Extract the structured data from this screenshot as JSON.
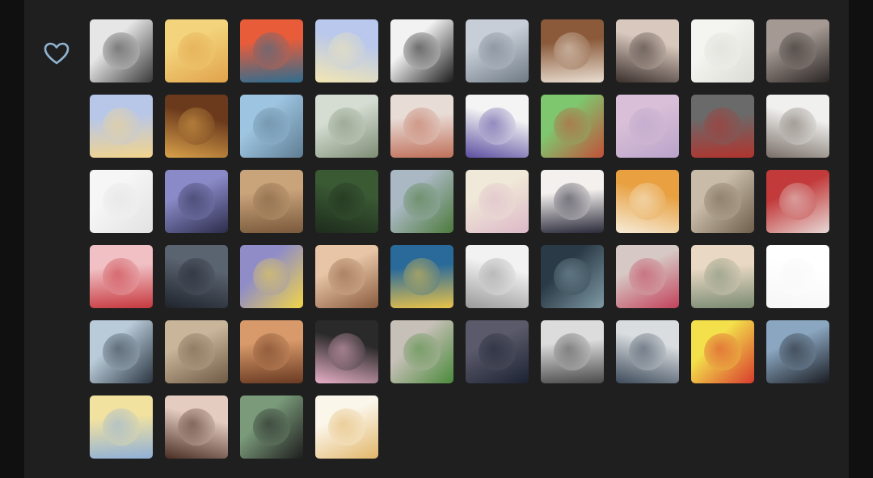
{
  "like_icon": "heart-outline-icon",
  "colors": {
    "page_bg": "#101010",
    "panel_bg": "#1f1f1f",
    "icon": "#8fb3cf"
  },
  "avatars": [
    {
      "name": "bw-portrait-mask",
      "colors": [
        "#e6e6e6",
        "#3a3a3a"
      ],
      "glyph": ""
    },
    {
      "name": "bugs-bunny-cartoon",
      "colors": [
        "#f3d37b",
        "#e0a24a"
      ],
      "glyph": ""
    },
    {
      "name": "patrick-star-cartoon",
      "colors": [
        "#e85c3a",
        "#2f6d8f"
      ],
      "glyph": ""
    },
    {
      "name": "comic-hand-phone",
      "colors": [
        "#b9c8ec",
        "#f2e6b2"
      ],
      "glyph": ""
    },
    {
      "name": "silhouette-flag",
      "colors": [
        "#f2f2f2",
        "#1b1b1b"
      ],
      "glyph": ""
    },
    {
      "name": "bridge-landscape",
      "colors": [
        "#c7ced8",
        "#6f7a84"
      ],
      "glyph": ""
    },
    {
      "name": "two-cats",
      "colors": [
        "#8a5a3a",
        "#e9ddd0"
      ],
      "glyph": ""
    },
    {
      "name": "two-girls-selfie",
      "colors": [
        "#d9c8bd",
        "#3a2f2c"
      ],
      "glyph": ""
    },
    {
      "name": "sketch-dog",
      "colors": [
        "#f4f4f0",
        "#dcdcd6"
      ],
      "glyph": ""
    },
    {
      "name": "girl-uniform",
      "colors": [
        "#a59a93",
        "#2a2524"
      ],
      "glyph": ""
    },
    {
      "name": "blonde-anime-girl",
      "colors": [
        "#b8c7e8",
        "#f2d48c"
      ],
      "glyph": ""
    },
    {
      "name": "restaurant-interior",
      "colors": [
        "#6b3a1c",
        "#d9a14a"
      ],
      "glyph": ""
    },
    {
      "name": "man-cap-portrait",
      "colors": [
        "#9dc4e0",
        "#5f7e94"
      ],
      "glyph": ""
    },
    {
      "name": "bride-photo",
      "colors": [
        "#d5ddd2",
        "#7e8d75"
      ],
      "glyph": ""
    },
    {
      "name": "flamingo-toys",
      "colors": [
        "#e8dcd6",
        "#c0705a"
      ],
      "glyph": ""
    },
    {
      "name": "cartoon-boy-cake",
      "colors": [
        "#f4f4f4",
        "#5c4ea0"
      ],
      "glyph": ""
    },
    {
      "name": "anime-boy-green",
      "colors": [
        "#7ec76e",
        "#c2503a"
      ],
      "glyph": ""
    },
    {
      "name": "anime-girl-pink",
      "colors": [
        "#d9c0d8",
        "#b9a3c9"
      ],
      "glyph": ""
    },
    {
      "name": "ultraman-figure",
      "colors": [
        "#6a6a6a",
        "#b1342e"
      ],
      "glyph": ""
    },
    {
      "name": "white-bird",
      "colors": [
        "#f0f0ee",
        "#7a6f68"
      ],
      "glyph": ""
    },
    {
      "name": "cartoon-cat-hoop",
      "colors": [
        "#f6f6f6",
        "#e2e2e2"
      ],
      "glyph": ""
    },
    {
      "name": "city-night-silhouette",
      "colors": [
        "#8a8ac8",
        "#2c2c4c"
      ],
      "glyph": ""
    },
    {
      "name": "baby-photo",
      "colors": [
        "#c9a37a",
        "#7a5a3c"
      ],
      "glyph": ""
    },
    {
      "name": "forest-trees",
      "colors": [
        "#3a5a34",
        "#1e2c1c"
      ],
      "glyph": ""
    },
    {
      "name": "grass-field",
      "colors": [
        "#a9b8c2",
        "#4d7a3c"
      ],
      "glyph": ""
    },
    {
      "name": "pink-pastel-drawing",
      "colors": [
        "#f0e8d8",
        "#dcb8c8"
      ],
      "glyph": ""
    },
    {
      "name": "anime-girl-glasses",
      "colors": [
        "#f4f0ee",
        "#2a2a3a"
      ],
      "glyph": ""
    },
    {
      "name": "snoopy-orange",
      "colors": [
        "#e8a040",
        "#f6ecd8"
      ],
      "glyph": ""
    },
    {
      "name": "girl-white-dress",
      "colors": [
        "#c8bca8",
        "#6f5e4c"
      ],
      "glyph": ""
    },
    {
      "name": "crowd-red-photo",
      "colors": [
        "#c23a3a",
        "#e7d9d6"
      ],
      "glyph": ""
    },
    {
      "name": "anime-girl-red",
      "colors": [
        "#f0c0c4",
        "#c6383e"
      ],
      "glyph": ""
    },
    {
      "name": "full-moon-city",
      "colors": [
        "#5a6370",
        "#1f242c"
      ],
      "glyph": ""
    },
    {
      "name": "yellow-raincoat-kid",
      "colors": [
        "#8f8cc8",
        "#f1d448"
      ],
      "glyph": ""
    },
    {
      "name": "two-kids-closeup",
      "colors": [
        "#e7c5a6",
        "#8a5a3e"
      ],
      "glyph": ""
    },
    {
      "name": "girl-flowers-yellow",
      "colors": [
        "#2a6a9a",
        "#e8c24a"
      ],
      "glyph": ""
    },
    {
      "name": "cartoon-cat-text",
      "colors": [
        "#f2f2f2",
        "#9a9a9a"
      ],
      "glyph": ""
    },
    {
      "name": "anime-boy-dark",
      "colors": [
        "#2a3a46",
        "#7f9aa6"
      ],
      "glyph": ""
    },
    {
      "name": "flower-girl-umbrella",
      "colors": [
        "#d6c8c4",
        "#c2415a"
      ],
      "glyph": ""
    },
    {
      "name": "boy-sketch-peach",
      "colors": [
        "#e9d9c4",
        "#7a8a72"
      ],
      "glyph": ""
    },
    {
      "name": "patrick-small-white",
      "colors": [
        "#ffffff",
        "#f6f6f6"
      ],
      "glyph": ""
    },
    {
      "name": "boy-hoodie",
      "colors": [
        "#b9cad8",
        "#2a3642"
      ],
      "glyph": ""
    },
    {
      "name": "cat-mask",
      "colors": [
        "#c8b59a",
        "#6f5a44"
      ],
      "glyph": ""
    },
    {
      "name": "cat-sunlight",
      "colors": [
        "#d89a6a",
        "#6a3a22"
      ],
      "glyph": ""
    },
    {
      "name": "kuromi-plush",
      "colors": [
        "#2a2a2a",
        "#e8b0c6"
      ],
      "glyph": ""
    },
    {
      "name": "frog-plush",
      "colors": [
        "#c7c0b8",
        "#4a8a3a"
      ],
      "glyph": ""
    },
    {
      "name": "night-sky-city",
      "colors": [
        "#5a5a6a",
        "#1c2232"
      ],
      "glyph": ""
    },
    {
      "name": "man-sea-bw",
      "colors": [
        "#dcdcdc",
        "#4a4a4a"
      ],
      "glyph": ""
    },
    {
      "name": "person-sitting-sky",
      "colors": [
        "#d9dde0",
        "#3c4a5a"
      ],
      "glyph": ""
    },
    {
      "name": "crayon-shin-chan",
      "colors": [
        "#f3e04a",
        "#d83a2e"
      ],
      "glyph": ""
    },
    {
      "name": "man-dark-coat",
      "colors": [
        "#8aa6c0",
        "#1a1c22"
      ],
      "glyph": ""
    },
    {
      "name": "cartoon-dog-beach",
      "colors": [
        "#f2e2a0",
        "#8fb0d8"
      ],
      "glyph": ""
    },
    {
      "name": "two-girls-portrait",
      "colors": [
        "#e4ccc0",
        "#4a2e24"
      ],
      "glyph": ""
    },
    {
      "name": "man-black-mask",
      "colors": [
        "#7a9a7a",
        "#1e1e1e"
      ],
      "glyph": ""
    },
    {
      "name": "blonde-sketch",
      "colors": [
        "#fbf6ea",
        "#e2b66a"
      ],
      "glyph": ""
    }
  ]
}
